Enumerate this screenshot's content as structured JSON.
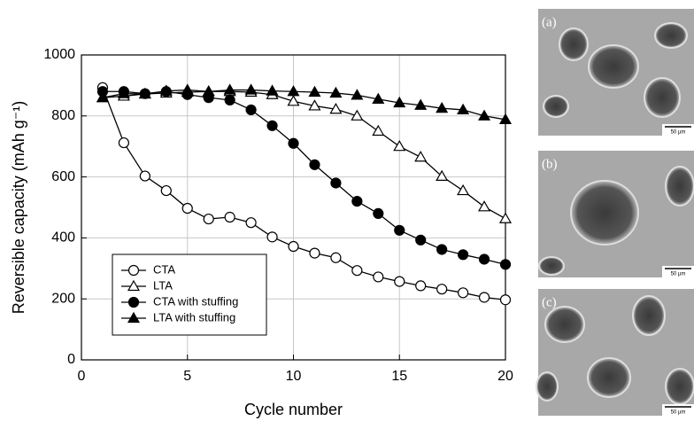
{
  "chart_data": {
    "type": "line",
    "x": [
      1,
      2,
      3,
      4,
      5,
      6,
      7,
      8,
      9,
      10,
      11,
      12,
      13,
      14,
      15,
      16,
      17,
      18,
      19,
      20
    ],
    "xlabel": "Cycle number",
    "ylabel": "Reversible capacity (mAh g⁻¹)",
    "xlim": [
      0,
      20
    ],
    "xticks": [
      0,
      5,
      10,
      15,
      20
    ],
    "ylim": [
      0,
      1000
    ],
    "yticks": [
      0,
      200,
      400,
      600,
      800,
      1000
    ],
    "grid": true,
    "legend": "lower-left",
    "series": [
      {
        "name": "CTA",
        "color": "#000000",
        "marker": "circle",
        "filled": false,
        "values": [
          893,
          712,
          603,
          555,
          497,
          462,
          468,
          450,
          403,
          372,
          350,
          335,
          293,
          272,
          257,
          243,
          232,
          220,
          205,
          197
        ]
      },
      {
        "name": "LTA",
        "color": "#000000",
        "marker": "triangle",
        "filled": false,
        "values": [
          860,
          865,
          872,
          875,
          878,
          880,
          880,
          878,
          870,
          848,
          833,
          822,
          800,
          750,
          700,
          665,
          602,
          555,
          502,
          463
        ]
      },
      {
        "name": "CTA with stuffing",
        "color": "#000000",
        "marker": "circle",
        "filled": true,
        "values": [
          880,
          880,
          873,
          880,
          870,
          860,
          852,
          820,
          768,
          710,
          640,
          580,
          520,
          480,
          425,
          393,
          362,
          345,
          330,
          313
        ]
      },
      {
        "name": "LTA with stuffing",
        "color": "#000000",
        "marker": "triangle",
        "filled": true,
        "values": [
          860,
          873,
          872,
          882,
          885,
          880,
          885,
          885,
          882,
          880,
          878,
          875,
          868,
          855,
          843,
          835,
          825,
          820,
          800,
          788
        ]
      }
    ]
  },
  "images": [
    {
      "label": "(a)",
      "scale": "50 µm"
    },
    {
      "label": "(b)",
      "scale": "50 µm"
    },
    {
      "label": "(c)",
      "scale": "50 µm"
    }
  ]
}
